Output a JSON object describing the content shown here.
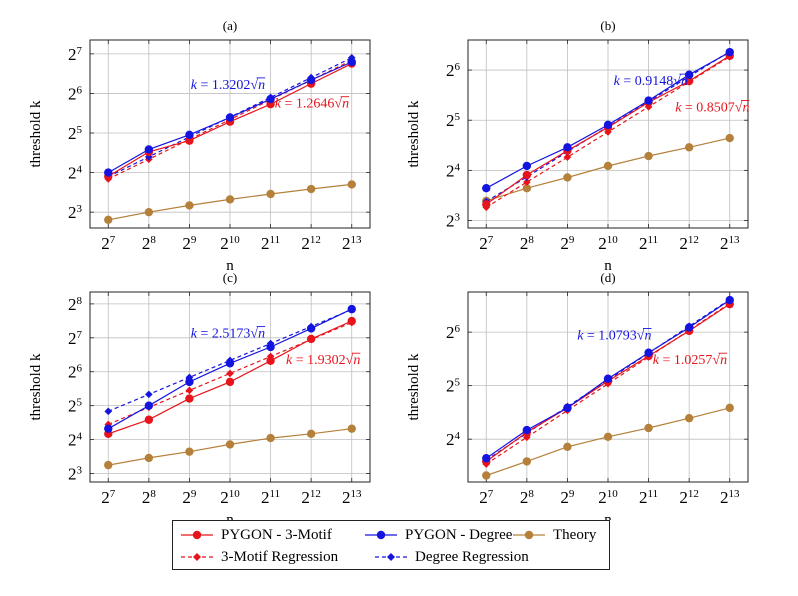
{
  "colors": {
    "motif": "#e8141c",
    "degree": "#1414e0",
    "theory": "#b5803a",
    "grid": "#bfbfbf",
    "axis": "#222222"
  },
  "legend": {
    "motif_label": "PYGON - 3-Motif",
    "degree_label": "PYGON - Degree",
    "theory_label": "Theory",
    "motif_reg_label": "3-Motif Regression",
    "degree_reg_label": "Degree Regression"
  },
  "chart_data": [
    {
      "type": "line",
      "title": "(a)",
      "xlabel": "n",
      "ylabel": "threshold k",
      "x_scale": "log2",
      "y_scale": "log2",
      "x": [
        128,
        256,
        512,
        1024,
        2048,
        4096,
        8192
      ],
      "x_ticks": [
        7,
        8,
        9,
        10,
        11,
        12,
        13
      ],
      "y_ticks": [
        3,
        4,
        5,
        6,
        7
      ],
      "ylim_log2": [
        2.6,
        7.35
      ],
      "series": [
        {
          "name": "PYGON - 3-Motif",
          "style": "solid",
          "marker": "circle",
          "color_key": "motif",
          "values": [
            15,
            23,
            28,
            39,
            53,
            76,
            108
          ]
        },
        {
          "name": "PYGON - Degree",
          "style": "solid",
          "marker": "circle",
          "color_key": "degree",
          "values": [
            16,
            24,
            31,
            42,
            58,
            81,
            111
          ]
        },
        {
          "name": "Theory",
          "style": "solid",
          "marker": "circle",
          "color_key": "theory",
          "values": [
            7,
            8,
            9,
            10,
            11,
            12,
            13
          ]
        },
        {
          "name": "3-Motif Regression",
          "style": "dashed",
          "marker": "diamond",
          "color_key": "motif",
          "values": [
            14.3,
            20.2,
            28.6,
            40.5,
            57.2,
            80.9,
            114.4
          ]
        },
        {
          "name": "Degree Regression",
          "style": "dashed",
          "marker": "diamond",
          "color_key": "degree",
          "values": [
            14.9,
            21.1,
            29.9,
            42.2,
            59.7,
            84.5,
            119.5
          ]
        }
      ],
      "annotations": [
        {
          "coef": "1.3202",
          "color_key": "degree"
        },
        {
          "coef": "1.2646",
          "color_key": "motif"
        }
      ]
    },
    {
      "type": "line",
      "title": "(b)",
      "xlabel": "n",
      "ylabel": "threshold k",
      "x_scale": "log2",
      "y_scale": "log2",
      "x": [
        128,
        256,
        512,
        1024,
        2048,
        4096,
        8192
      ],
      "x_ticks": [
        7,
        8,
        9,
        10,
        11,
        12,
        13
      ],
      "y_ticks": [
        3,
        4,
        5,
        6
      ],
      "ylim_log2": [
        2.85,
        6.6
      ],
      "series": [
        {
          "name": "PYGON - 3-Motif",
          "style": "solid",
          "marker": "circle",
          "color_key": "motif",
          "values": [
            10,
            15,
            21,
            29,
            41,
            55,
            78
          ]
        },
        {
          "name": "PYGON - Degree",
          "style": "solid",
          "marker": "circle",
          "color_key": "degree",
          "values": [
            12.5,
            17,
            22,
            30,
            42,
            60,
            82
          ]
        },
        {
          "name": "Theory",
          "style": "solid",
          "marker": "circle",
          "color_key": "theory",
          "values": [
            10.5,
            12.5,
            14.5,
            17,
            19.5,
            22,
            25
          ]
        },
        {
          "name": "3-Motif Regression",
          "style": "dashed",
          "marker": "diamond",
          "color_key": "motif",
          "values": [
            9.6,
            13.6,
            19.2,
            27.2,
            38.5,
            54.4,
            77
          ]
        },
        {
          "name": "Degree Regression",
          "style": "dashed",
          "marker": "diamond",
          "color_key": "degree",
          "values": [
            10.4,
            14.6,
            20.7,
            29.3,
            41.4,
            58.6,
            82.8
          ]
        }
      ],
      "annotations": [
        {
          "coef": "0.9148",
          "color_key": "degree"
        },
        {
          "coef": "0.8507",
          "color_key": "motif"
        }
      ]
    },
    {
      "type": "line",
      "title": "(c)",
      "xlabel": "n",
      "ylabel": "threshold k",
      "x_scale": "log2",
      "y_scale": "log2",
      "x": [
        128,
        256,
        512,
        1024,
        2048,
        4096,
        8192
      ],
      "x_ticks": [
        7,
        8,
        9,
        10,
        11,
        12,
        13
      ],
      "y_ticks": [
        3,
        4,
        5,
        6,
        7,
        8
      ],
      "ylim_log2": [
        2.75,
        8.35
      ],
      "series": [
        {
          "name": "PYGON - 3-Motif",
          "style": "solid",
          "marker": "circle",
          "color_key": "motif",
          "values": [
            18,
            24,
            37,
            52,
            80,
            125,
            180
          ]
        },
        {
          "name": "PYGON - Degree",
          "style": "solid",
          "marker": "circle",
          "color_key": "degree",
          "values": [
            20,
            32,
            52,
            76,
            106,
            155,
            230
          ]
        },
        {
          "name": "Theory",
          "style": "solid",
          "marker": "circle",
          "color_key": "theory",
          "values": [
            9.5,
            11,
            12.5,
            14.5,
            16.5,
            18,
            20
          ]
        },
        {
          "name": "3-Motif Regression",
          "style": "dashed",
          "marker": "diamond",
          "color_key": "motif",
          "values": [
            21.8,
            30.9,
            43.7,
            61.8,
            87.4,
            123.6,
            174.7
          ]
        },
        {
          "name": "Degree Regression",
          "style": "dashed",
          "marker": "diamond",
          "color_key": "degree",
          "values": [
            28.5,
            40.3,
            57,
            80.6,
            113.9,
            161.1,
            227.8
          ]
        }
      ],
      "annotations": [
        {
          "coef": "2.5173",
          "color_key": "degree"
        },
        {
          "coef": "1.9302",
          "color_key": "motif"
        }
      ]
    },
    {
      "type": "line",
      "title": "(d)",
      "xlabel": "n",
      "ylabel": "threshold k",
      "x_scale": "log2",
      "y_scale": "log2",
      "x": [
        128,
        256,
        512,
        1024,
        2048,
        4096,
        8192
      ],
      "x_ticks": [
        7,
        8,
        9,
        10,
        11,
        12,
        13
      ],
      "y_ticks": [
        4,
        5,
        6
      ],
      "ylim_log2": [
        3.2,
        6.75
      ],
      "series": [
        {
          "name": "PYGON - 3-Motif",
          "style": "solid",
          "marker": "circle",
          "color_key": "motif",
          "values": [
            12,
            17.5,
            24,
            34,
            47,
            65,
            92
          ]
        },
        {
          "name": "PYGON - Degree",
          "style": "solid",
          "marker": "circle",
          "color_key": "degree",
          "values": [
            12.5,
            18,
            24,
            35,
            49,
            68,
            97
          ]
        },
        {
          "name": "Theory",
          "style": "solid",
          "marker": "circle",
          "color_key": "theory",
          "values": [
            10,
            12,
            14.5,
            16.5,
            18.5,
            21,
            24
          ]
        },
        {
          "name": "3-Motif Regression",
          "style": "dashed",
          "marker": "diamond",
          "color_key": "motif",
          "values": [
            11.6,
            16.4,
            23.2,
            32.8,
            46.4,
            65.6,
            92.8
          ]
        },
        {
          "name": "Degree Regression",
          "style": "dashed",
          "marker": "diamond",
          "color_key": "degree",
          "values": [
            12.2,
            17.3,
            24.4,
            34.5,
            48.8,
            69.1,
            97.7
          ]
        }
      ],
      "annotations": [
        {
          "coef": "1.0793",
          "color_key": "degree"
        },
        {
          "coef": "1.0257",
          "color_key": "motif"
        }
      ]
    }
  ]
}
